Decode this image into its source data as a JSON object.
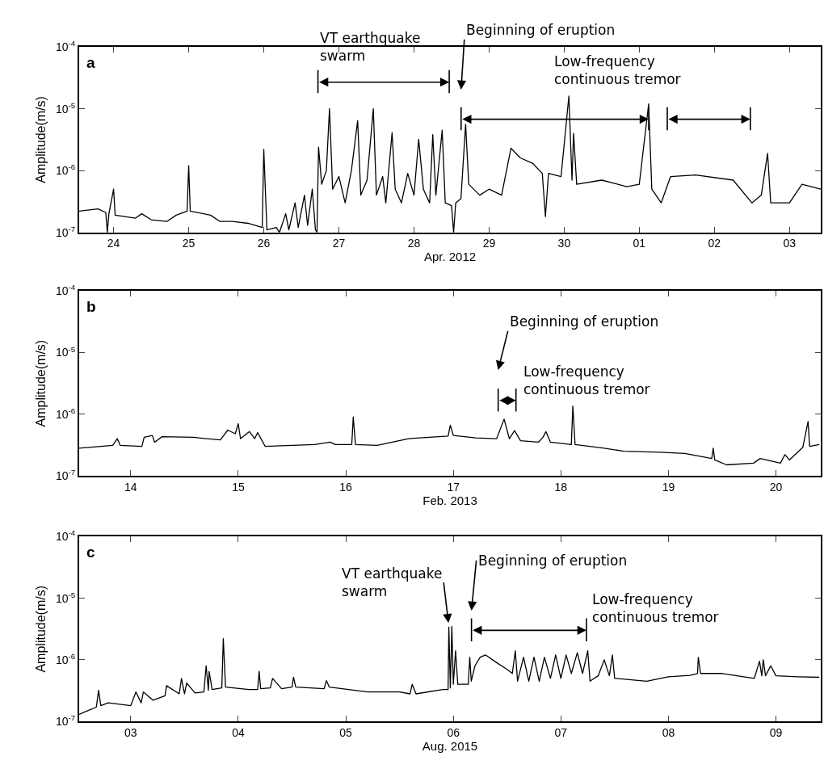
{
  "chart_data": [
    {
      "type": "line",
      "title": "a",
      "xlabel": "Apr. 2012",
      "ylabel": "Amplitude(m/s)",
      "color": "#000000",
      "log": true,
      "grid": false,
      "xlim": [
        "2012-04-23T13:00",
        "2012-05-03T10:00"
      ],
      "xticks": [
        {
          "value": "2012-04-24",
          "label": "24"
        },
        {
          "value": "2012-04-25",
          "label": "25"
        },
        {
          "value": "2012-04-26",
          "label": "26"
        },
        {
          "value": "2012-04-27",
          "label": "27"
        },
        {
          "value": "2012-04-28",
          "label": "28"
        },
        {
          "value": "2012-04-29",
          "label": "29"
        },
        {
          "value": "2012-04-30",
          "label": "30"
        },
        {
          "value": "2012-05-01",
          "label": "01"
        },
        {
          "value": "2012-05-02",
          "label": "02"
        },
        {
          "value": "2012-05-03",
          "label": "03"
        }
      ],
      "ylim": [
        1e-07,
        0.0001
      ],
      "yticks": [
        {
          "value": 1e-07,
          "label": "10$^{-7}$"
        },
        {
          "value": 1e-06,
          "label": "10$^{-6}$"
        },
        {
          "value": 1e-05,
          "label": "10$^{-5}$"
        },
        {
          "value": 0.0001,
          "label": "10$^{-4}$"
        }
      ],
      "x": [
        "2012-04-23T13:00",
        "2012-04-23T19:00",
        "2012-04-23T21:30",
        "2012-04-23T22:00",
        "2012-04-23T22:30",
        "2012-04-24T00:00",
        "2012-04-24T00:30",
        "2012-04-24T07:00",
        "2012-04-24T09:00",
        "2012-04-24T12:00",
        "2012-04-24T17:00",
        "2012-04-24T20:00",
        "2012-04-24T23:30",
        "2012-04-25T00:00",
        "2012-04-25T00:30",
        "2012-04-25T07:00",
        "2012-04-25T10:00",
        "2012-04-25T14:00",
        "2012-04-25T19:00",
        "2012-04-25T23:30",
        "2012-04-26T00:00",
        "2012-04-26T01:00",
        "2012-04-26T04:00",
        "2012-04-26T05:00",
        "2012-04-26T07:00",
        "2012-04-26T08:00",
        "2012-04-26T10:00",
        "2012-04-26T11:00",
        "2012-04-26T13:00",
        "2012-04-26T14:00",
        "2012-04-26T15:30",
        "2012-04-26T16:30",
        "2012-04-26T17:00",
        "2012-04-26T17:30",
        "2012-04-26T18:30",
        "2012-04-26T20:00",
        "2012-04-26T21:00",
        "2012-04-26T22:00",
        "2012-04-27T00:00",
        "2012-04-27T02:00",
        "2012-04-27T04:00",
        "2012-04-27T06:00",
        "2012-04-27T07:00",
        "2012-04-27T09:00",
        "2012-04-27T11:00",
        "2012-04-27T12:00",
        "2012-04-27T14:00",
        "2012-04-27T15:00",
        "2012-04-27T17:00",
        "2012-04-27T18:00",
        "2012-04-27T20:00",
        "2012-04-27T22:00",
        "2012-04-28T00:00",
        "2012-04-28T01:30",
        "2012-04-28T03:00",
        "2012-04-28T05:00",
        "2012-04-28T06:00",
        "2012-04-28T07:00",
        "2012-04-28T09:00",
        "2012-04-28T10:00",
        "2012-04-28T12:00",
        "2012-04-28T12:40",
        "2012-04-28T13:20",
        "2012-04-28T15:00",
        "2012-04-28T16:30",
        "2012-04-28T17:30",
        "2012-04-28T21:00",
        "2012-04-29T00:00",
        "2012-04-29T04:00",
        "2012-04-29T07:00",
        "2012-04-29T10:00",
        "2012-04-29T14:00",
        "2012-04-29T17:00",
        "2012-04-29T18:00",
        "2012-04-29T19:00",
        "2012-04-29T23:00",
        "2012-04-30T01:30",
        "2012-04-30T02:30",
        "2012-04-30T03:00",
        "2012-04-30T04:00",
        "2012-04-30T12:00",
        "2012-04-30T20:00",
        "2012-05-01T00:00",
        "2012-05-01T03:00",
        "2012-05-01T04:00",
        "2012-05-01T07:00",
        "2012-05-01T10:00",
        "2012-05-01T18:00",
        "2012-05-02T06:00",
        "2012-05-02T12:00",
        "2012-05-02T15:00",
        "2012-05-02T17:00",
        "2012-05-02T18:00",
        "2012-05-03T00:00",
        "2012-05-03T04:00",
        "2012-05-03T10:00"
      ],
      "values": [
        2.2e-07,
        2.4e-07,
        2.1e-07,
        1e-07,
        2e-07,
        5e-07,
        1.9e-07,
        1.7e-07,
        2e-07,
        1.6e-07,
        1.5e-07,
        1.9e-07,
        2.2e-07,
        1.2e-06,
        2.2e-07,
        1.9e-07,
        1.5e-07,
        1.5e-07,
        1.4e-07,
        1.2e-07,
        2.2e-06,
        1.1e-07,
        1.2e-07,
        1e-07,
        2e-07,
        1.1e-07,
        3e-07,
        1.2e-07,
        4e-07,
        1.3e-07,
        5e-07,
        1.1e-07,
        1e-07,
        2.4e-06,
        6e-07,
        1e-06,
        1e-05,
        5e-07,
        8e-07,
        3e-07,
        1e-06,
        6.4e-06,
        4e-07,
        7e-07,
        1e-05,
        4e-07,
        8e-07,
        3e-07,
        4.1e-06,
        5e-07,
        3e-07,
        9e-07,
        4e-07,
        3.2e-06,
        5e-07,
        3e-07,
        3.8e-06,
        4e-07,
        4.5e-06,
        3e-07,
        2.7e-07,
        1e-07,
        3e-07,
        3.5e-07,
        5.6e-06,
        6e-07,
        4e-07,
        5e-07,
        4e-07,
        2.3e-06,
        1.6e-06,
        1.3e-06,
        9e-07,
        1.8e-07,
        9e-07,
        8e-07,
        1.6e-05,
        7e-07,
        4e-06,
        6e-07,
        7e-07,
        5.5e-07,
        6e-07,
        1.2e-05,
        5e-07,
        3e-07,
        8e-07,
        8.5e-07,
        7e-07,
        3e-07,
        4e-07,
        1.9e-06,
        3e-07,
        3e-07,
        6e-07,
        5e-07
      ],
      "annotations": [
        "VT earthquake\nswarm",
        "Beginning of eruption",
        "Low-frequency\ncontinuous tremor"
      ]
    },
    {
      "type": "line",
      "title": "b",
      "xlabel": "Feb. 2013",
      "ylabel": "Amplitude(m/s)",
      "color": "#000000",
      "log": true,
      "grid": false,
      "xlim": [
        "2013-02-13T12:30",
        "2013-02-20T10:00"
      ],
      "xticks": [
        {
          "value": "2013-02-14",
          "label": "14"
        },
        {
          "value": "2013-02-15",
          "label": "15"
        },
        {
          "value": "2013-02-16",
          "label": "16"
        },
        {
          "value": "2013-02-17",
          "label": "17"
        },
        {
          "value": "2013-02-18",
          "label": "18"
        },
        {
          "value": "2013-02-19",
          "label": "19"
        },
        {
          "value": "2013-02-20",
          "label": "20"
        }
      ],
      "ylim": [
        1e-07,
        0.0001
      ],
      "yticks": [
        {
          "value": 1e-07,
          "label": "10$^{-7}$"
        },
        {
          "value": 1e-06,
          "label": "10$^{-6}$"
        },
        {
          "value": 1e-05,
          "label": "10$^{-5}$"
        },
        {
          "value": 0.0001,
          "label": "10$^{-4}$"
        }
      ],
      "x": [
        "2013-02-13T12:30",
        "2013-02-13T20:00",
        "2013-02-13T21:00",
        "2013-02-13T21:40",
        "2013-02-14T02:30",
        "2013-02-14T03:00",
        "2013-02-14T04:50",
        "2013-02-14T05:20",
        "2013-02-14T07:00",
        "2013-02-14T14:00",
        "2013-02-14T20:00",
        "2013-02-14T21:40",
        "2013-02-14T23:20",
        "2013-02-15T00:00",
        "2013-02-15T00:30",
        "2013-02-15T02:30",
        "2013-02-15T03:40",
        "2013-02-15T04:20",
        "2013-02-15T06:00",
        "2013-02-15T12:00",
        "2013-02-15T17:00",
        "2013-02-15T20:30",
        "2013-02-15T21:40",
        "2013-02-16T01:20",
        "2013-02-16T01:40",
        "2013-02-16T02:10",
        "2013-02-16T07:00",
        "2013-02-16T14:00",
        "2013-02-16T22:50",
        "2013-02-16T23:20",
        "2013-02-17T00:00",
        "2013-02-17T05:00",
        "2013-02-17T09:40",
        "2013-02-17T11:20",
        "2013-02-17T12:30",
        "2013-02-17T13:40",
        "2013-02-17T15:00",
        "2013-02-17T19:00",
        "2013-02-17T20:00",
        "2013-02-17T20:40",
        "2013-02-17T21:40",
        "2013-02-18T02:20",
        "2013-02-18T02:40",
        "2013-02-18T03:10",
        "2013-02-18T09:40",
        "2013-02-18T14:00",
        "2013-02-18T22:00",
        "2013-02-19T03:40",
        "2013-02-19T09:40",
        "2013-02-19T10:00",
        "2013-02-19T10:20",
        "2013-02-19T13:00",
        "2013-02-19T19:00",
        "2013-02-19T20:30",
        "2013-02-20T01:00",
        "2013-02-20T02:00",
        "2013-02-20T03:00",
        "2013-02-20T06:00",
        "2013-02-20T07:10",
        "2013-02-20T07:30",
        "2013-02-20T09:40"
      ],
      "values": [
        2.8e-07,
        3.1e-07,
        4e-07,
        3.1e-07,
        3e-07,
        4.2e-07,
        4.5e-07,
        3.5e-07,
        4.3e-07,
        4.2e-07,
        3.8e-07,
        5.5e-07,
        4.8e-07,
        7e-07,
        4e-07,
        5.2e-07,
        4e-07,
        5e-07,
        3e-07,
        3.1e-07,
        3.2e-07,
        3.5e-07,
        3.2e-07,
        3.2e-07,
        9e-07,
        3.2e-07,
        3.1e-07,
        4e-07,
        4.4e-07,
        6.6e-07,
        4.5e-07,
        4.1e-07,
        4e-07,
        8.3e-07,
        4e-07,
        5.4e-07,
        3.7e-07,
        3.5e-07,
        4.2e-07,
        5.2e-07,
        3.5e-07,
        3.2e-07,
        1.35e-06,
        3.2e-07,
        2.8e-07,
        2.5e-07,
        2.4e-07,
        2.3e-07,
        1.9e-07,
        2.8e-07,
        1.8e-07,
        1.5e-07,
        1.6e-07,
        1.9e-07,
        1.6e-07,
        2.2e-07,
        1.8e-07,
        2.9e-07,
        7.6e-07,
        3e-07,
        3.2e-07
      ],
      "annotations": [
        "Beginning of eruption",
        "Low-frequency\ncontinuous tremor"
      ]
    },
    {
      "type": "line",
      "title": "c",
      "xlabel": "Aug. 2015",
      "ylabel": "Amplitude(m/s)",
      "color": "#000000",
      "log": true,
      "grid": false,
      "xlim": [
        "2015-08-02T12:30",
        "2015-08-09T10:00"
      ],
      "xticks": [
        {
          "value": "2015-08-03",
          "label": "03"
        },
        {
          "value": "2015-08-04",
          "label": "04"
        },
        {
          "value": "2015-08-05",
          "label": "05"
        },
        {
          "value": "2015-08-06",
          "label": "06"
        },
        {
          "value": "2015-08-07",
          "label": "07"
        },
        {
          "value": "2015-08-08",
          "label": "08"
        },
        {
          "value": "2015-08-09",
          "label": "09"
        }
      ],
      "ylim": [
        1e-07,
        0.0001
      ],
      "yticks": [
        {
          "value": 1e-07,
          "label": "10$^{-7}$"
        },
        {
          "value": 1e-06,
          "label": "10$^{-6}$"
        },
        {
          "value": 1e-05,
          "label": "10$^{-5}$"
        },
        {
          "value": 0.0001,
          "label": "10$^{-4}$"
        }
      ],
      "x": [
        "2015-08-02T12:30",
        "2015-08-02T14:30",
        "2015-08-02T16:20",
        "2015-08-02T16:50",
        "2015-08-02T17:20",
        "2015-08-02T19:00",
        "2015-08-03T00:00",
        "2015-08-03T01:10",
        "2015-08-03T02:20",
        "2015-08-03T02:50",
        "2015-08-03T05:00",
        "2015-08-03T07:40",
        "2015-08-03T08:00",
        "2015-08-03T10:50",
        "2015-08-03T11:20",
        "2015-08-03T12:00",
        "2015-08-03T12:30",
        "2015-08-03T14:20",
        "2015-08-03T16:20",
        "2015-08-03T16:50",
        "2015-08-03T17:20",
        "2015-08-03T17:30",
        "2015-08-03T18:10",
        "2015-08-03T20:20",
        "2015-08-03T20:40",
        "2015-08-03T21:10",
        "2015-08-04T02:20",
        "2015-08-04T04:20",
        "2015-08-04T04:40",
        "2015-08-04T05:00",
        "2015-08-04T07:10",
        "2015-08-04T07:40",
        "2015-08-04T09:40",
        "2015-08-04T12:00",
        "2015-08-04T12:20",
        "2015-08-04T12:50",
        "2015-08-04T19:10",
        "2015-08-04T19:40",
        "2015-08-04T20:20",
        "2015-08-05T04:50",
        "2015-08-05T12:00",
        "2015-08-05T14:20",
        "2015-08-05T14:50",
        "2015-08-05T15:40",
        "2015-08-05T21:40",
        "2015-08-05T22:50",
        "2015-08-05T23:00",
        "2015-08-05T23:20",
        "2015-08-05T23:40",
        "2015-08-06T00:00",
        "2015-08-06T00:30",
        "2015-08-06T01:00",
        "2015-08-06T03:20",
        "2015-08-06T03:40",
        "2015-08-06T04:00",
        "2015-08-06T04:50",
        "2015-08-06T06:00",
        "2015-08-06T07:10",
        "2015-08-06T09:40",
        "2015-08-06T12:00",
        "2015-08-06T13:10",
        "2015-08-06T13:50",
        "2015-08-06T14:20",
        "2015-08-06T15:40",
        "2015-08-06T16:50",
        "2015-08-06T18:00",
        "2015-08-06T19:10",
        "2015-08-06T20:20",
        "2015-08-06T21:40",
        "2015-08-06T22:50",
        "2015-08-07T00:00",
        "2015-08-07T01:10",
        "2015-08-07T02:20",
        "2015-08-07T03:40",
        "2015-08-07T04:50",
        "2015-08-07T06:00",
        "2015-08-07T06:30",
        "2015-08-07T08:20",
        "2015-08-07T09:40",
        "2015-08-07T10:50",
        "2015-08-07T11:30",
        "2015-08-07T12:00",
        "2015-08-07T19:10",
        "2015-08-08T00:00",
        "2015-08-08T04:50",
        "2015-08-08T06:30",
        "2015-08-08T06:40",
        "2015-08-08T07:10",
        "2015-08-08T12:00",
        "2015-08-08T19:10",
        "2015-08-08T20:20",
        "2015-08-08T20:50",
        "2015-08-08T21:10",
        "2015-08-08T21:40",
        "2015-08-08T22:50",
        "2015-08-09T00:00",
        "2015-08-09T04:50",
        "2015-08-09T09:40"
      ],
      "values": [
        1.3e-07,
        1.5e-07,
        1.7e-07,
        3.2e-07,
        1.8e-07,
        2e-07,
        1.8e-07,
        3e-07,
        2e-07,
        3e-07,
        2.2e-07,
        2.6e-07,
        3.8e-07,
        2.8e-07,
        5e-07,
        2.8e-07,
        4.2e-07,
        2.9e-07,
        3e-07,
        8e-07,
        3.2e-07,
        6.5e-07,
        3.3e-07,
        3.5e-07,
        2.2e-06,
        3.6e-07,
        3.3e-07,
        3.3e-07,
        6.5e-07,
        3.4e-07,
        3.5e-07,
        5e-07,
        3.4e-07,
        3.6e-07,
        5.2e-07,
        3.6e-07,
        3.4e-07,
        4.6e-07,
        3.6e-07,
        3e-07,
        3e-07,
        2.8e-07,
        4e-07,
        2.8e-07,
        3.3e-07,
        3.3e-07,
        3.4e-06,
        3.5e-07,
        3.5e-06,
        4e-07,
        1.4e-06,
        4e-07,
        4e-07,
        1.1e-06,
        4.5e-07,
        8e-07,
        1.1e-06,
        1.2e-06,
        9e-07,
        7e-07,
        6e-07,
        1.4e-06,
        4.5e-07,
        1.1e-06,
        4.5e-07,
        1.1e-06,
        4.5e-07,
        1.1e-06,
        5e-07,
        1.2e-06,
        5e-07,
        1.2e-06,
        6e-07,
        1.3e-06,
        6e-07,
        1.4e-06,
        4.5e-07,
        5.5e-07,
        1e-06,
        5.5e-07,
        1.2e-06,
        5e-07,
        4.5e-07,
        5.3e-07,
        5.6e-07,
        6e-07,
        1.1e-06,
        6e-07,
        6e-07,
        5e-07,
        9.5e-07,
        5.5e-07,
        1e-06,
        5.5e-07,
        8e-07,
        5.5e-07,
        5.3e-07,
        5.2e-07
      ],
      "annotations": [
        "VT earthquake\nswarm",
        "Beginning of eruption",
        "Low-frequency\ncontinuous tremor"
      ]
    }
  ]
}
